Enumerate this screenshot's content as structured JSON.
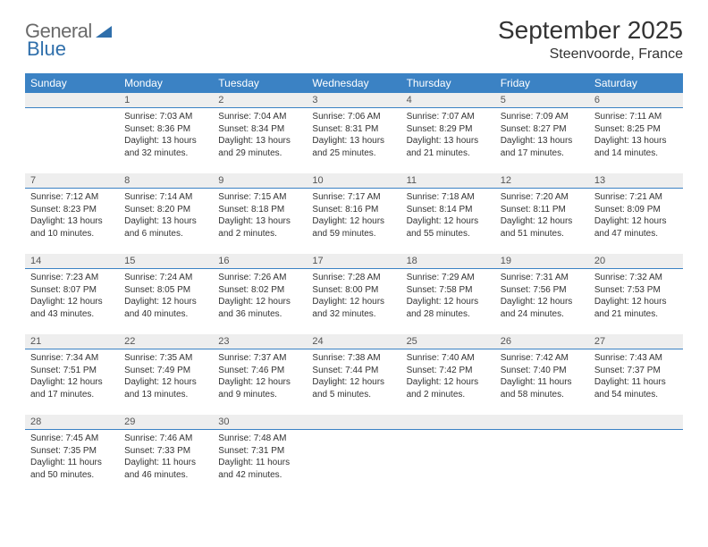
{
  "brand": {
    "word1": "General",
    "word2": "Blue"
  },
  "title": "September 2025",
  "location": "Steenvoorde, France",
  "colors": {
    "header_bg": "#3b82c4",
    "header_text": "#ffffff",
    "day_head_bg": "#eeeeee",
    "day_head_text": "#555555",
    "body_text": "#333333",
    "rule": "#3b82c4",
    "page_bg": "#ffffff"
  },
  "typography": {
    "title_fontsize_pt": 21,
    "location_fontsize_pt": 12,
    "weekday_fontsize_pt": 9,
    "daynum_fontsize_pt": 8,
    "body_fontsize_pt": 7.5
  },
  "calendar": {
    "weekdays": [
      "Sunday",
      "Monday",
      "Tuesday",
      "Wednesday",
      "Thursday",
      "Friday",
      "Saturday"
    ],
    "weeks": [
      [
        null,
        {
          "n": "1",
          "sr": "7:03 AM",
          "ss": "8:36 PM",
          "dl": "13 hours and 32 minutes."
        },
        {
          "n": "2",
          "sr": "7:04 AM",
          "ss": "8:34 PM",
          "dl": "13 hours and 29 minutes."
        },
        {
          "n": "3",
          "sr": "7:06 AM",
          "ss": "8:31 PM",
          "dl": "13 hours and 25 minutes."
        },
        {
          "n": "4",
          "sr": "7:07 AM",
          "ss": "8:29 PM",
          "dl": "13 hours and 21 minutes."
        },
        {
          "n": "5",
          "sr": "7:09 AM",
          "ss": "8:27 PM",
          "dl": "13 hours and 17 minutes."
        },
        {
          "n": "6",
          "sr": "7:11 AM",
          "ss": "8:25 PM",
          "dl": "13 hours and 14 minutes."
        }
      ],
      [
        {
          "n": "7",
          "sr": "7:12 AM",
          "ss": "8:23 PM",
          "dl": "13 hours and 10 minutes."
        },
        {
          "n": "8",
          "sr": "7:14 AM",
          "ss": "8:20 PM",
          "dl": "13 hours and 6 minutes."
        },
        {
          "n": "9",
          "sr": "7:15 AM",
          "ss": "8:18 PM",
          "dl": "13 hours and 2 minutes."
        },
        {
          "n": "10",
          "sr": "7:17 AM",
          "ss": "8:16 PM",
          "dl": "12 hours and 59 minutes."
        },
        {
          "n": "11",
          "sr": "7:18 AM",
          "ss": "8:14 PM",
          "dl": "12 hours and 55 minutes."
        },
        {
          "n": "12",
          "sr": "7:20 AM",
          "ss": "8:11 PM",
          "dl": "12 hours and 51 minutes."
        },
        {
          "n": "13",
          "sr": "7:21 AM",
          "ss": "8:09 PM",
          "dl": "12 hours and 47 minutes."
        }
      ],
      [
        {
          "n": "14",
          "sr": "7:23 AM",
          "ss": "8:07 PM",
          "dl": "12 hours and 43 minutes."
        },
        {
          "n": "15",
          "sr": "7:24 AM",
          "ss": "8:05 PM",
          "dl": "12 hours and 40 minutes."
        },
        {
          "n": "16",
          "sr": "7:26 AM",
          "ss": "8:02 PM",
          "dl": "12 hours and 36 minutes."
        },
        {
          "n": "17",
          "sr": "7:28 AM",
          "ss": "8:00 PM",
          "dl": "12 hours and 32 minutes."
        },
        {
          "n": "18",
          "sr": "7:29 AM",
          "ss": "7:58 PM",
          "dl": "12 hours and 28 minutes."
        },
        {
          "n": "19",
          "sr": "7:31 AM",
          "ss": "7:56 PM",
          "dl": "12 hours and 24 minutes."
        },
        {
          "n": "20",
          "sr": "7:32 AM",
          "ss": "7:53 PM",
          "dl": "12 hours and 21 minutes."
        }
      ],
      [
        {
          "n": "21",
          "sr": "7:34 AM",
          "ss": "7:51 PM",
          "dl": "12 hours and 17 minutes."
        },
        {
          "n": "22",
          "sr": "7:35 AM",
          "ss": "7:49 PM",
          "dl": "12 hours and 13 minutes."
        },
        {
          "n": "23",
          "sr": "7:37 AM",
          "ss": "7:46 PM",
          "dl": "12 hours and 9 minutes."
        },
        {
          "n": "24",
          "sr": "7:38 AM",
          "ss": "7:44 PM",
          "dl": "12 hours and 5 minutes."
        },
        {
          "n": "25",
          "sr": "7:40 AM",
          "ss": "7:42 PM",
          "dl": "12 hours and 2 minutes."
        },
        {
          "n": "26",
          "sr": "7:42 AM",
          "ss": "7:40 PM",
          "dl": "11 hours and 58 minutes."
        },
        {
          "n": "27",
          "sr": "7:43 AM",
          "ss": "7:37 PM",
          "dl": "11 hours and 54 minutes."
        }
      ],
      [
        {
          "n": "28",
          "sr": "7:45 AM",
          "ss": "7:35 PM",
          "dl": "11 hours and 50 minutes."
        },
        {
          "n": "29",
          "sr": "7:46 AM",
          "ss": "7:33 PM",
          "dl": "11 hours and 46 minutes."
        },
        {
          "n": "30",
          "sr": "7:48 AM",
          "ss": "7:31 PM",
          "dl": "11 hours and 42 minutes."
        },
        null,
        null,
        null,
        null
      ]
    ]
  },
  "labels": {
    "sunrise": "Sunrise:",
    "sunset": "Sunset:",
    "daylight": "Daylight:"
  }
}
